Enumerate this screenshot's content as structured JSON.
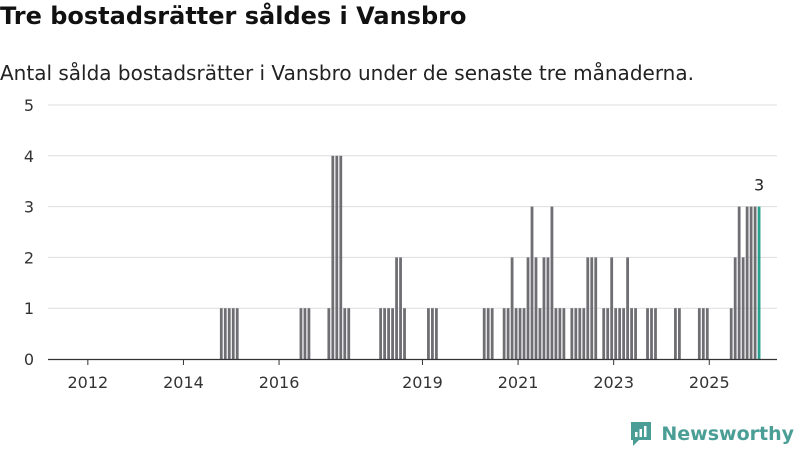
{
  "header": {
    "title": "Tre bostadsrätter såldes i Vansbro",
    "subtitle": "Antal sålda bostadsrätter i Vansbro under de senaste tre månaderna."
  },
  "brand": {
    "name": "Newsworthy",
    "color": "#4a9e96"
  },
  "colors": {
    "bar": "#6e6e73",
    "highlight": "#2aa08f",
    "grid": "#dddddd",
    "axis": "#333333"
  },
  "chart_data": {
    "type": "bar",
    "title": "Tre bostadsrätter såldes i Vansbro",
    "subtitle": "Antal sålda bostadsrätter i Vansbro under de senaste tre månaderna.",
    "xlabel": "",
    "ylabel": "",
    "ylim": [
      0,
      5
    ],
    "yticks": [
      0,
      1,
      2,
      3,
      4,
      5
    ],
    "xlim": [
      "2011-03",
      "2026-06"
    ],
    "xticks": [
      "2012",
      "2014",
      "2016",
      "2019",
      "2021",
      "2023",
      "2025"
    ],
    "grid": true,
    "annotations": [
      {
        "x": "2026-01",
        "text": "3"
      }
    ],
    "highlight": "2026-01",
    "x": [
      "2014-10",
      "2014-11",
      "2014-12",
      "2015-01",
      "2015-02",
      "2016-06",
      "2016-07",
      "2016-08",
      "2017-01",
      "2017-02",
      "2017-03",
      "2017-04",
      "2017-05",
      "2017-06",
      "2018-02",
      "2018-03",
      "2018-04",
      "2018-05",
      "2018-06",
      "2018-07",
      "2018-08",
      "2019-02",
      "2019-03",
      "2019-04",
      "2020-04",
      "2020-05",
      "2020-06",
      "2020-09",
      "2020-10",
      "2020-11",
      "2020-12",
      "2021-01",
      "2021-02",
      "2021-03",
      "2021-04",
      "2021-05",
      "2021-06",
      "2021-07",
      "2021-08",
      "2021-09",
      "2021-10",
      "2021-11",
      "2021-12",
      "2022-02",
      "2022-03",
      "2022-04",
      "2022-05",
      "2022-06",
      "2022-07",
      "2022-08",
      "2022-10",
      "2022-11",
      "2022-12",
      "2023-01",
      "2023-02",
      "2023-03",
      "2023-04",
      "2023-05",
      "2023-06",
      "2023-09",
      "2023-10",
      "2023-11",
      "2024-04",
      "2024-05",
      "2024-10",
      "2024-11",
      "2024-12",
      "2025-06",
      "2025-07",
      "2025-08",
      "2025-09",
      "2025-10",
      "2025-11",
      "2025-12",
      "2026-01"
    ],
    "values": [
      1,
      1,
      1,
      1,
      1,
      1,
      1,
      1,
      1,
      4,
      4,
      4,
      1,
      1,
      1,
      1,
      1,
      1,
      2,
      2,
      1,
      1,
      1,
      1,
      1,
      1,
      1,
      1,
      1,
      2,
      1,
      1,
      1,
      2,
      3,
      2,
      1,
      2,
      2,
      3,
      1,
      1,
      1,
      1,
      1,
      1,
      1,
      2,
      2,
      2,
      1,
      1,
      2,
      1,
      1,
      1,
      2,
      1,
      1,
      1,
      1,
      1,
      1,
      1,
      1,
      1,
      1,
      1,
      2,
      3,
      2,
      3,
      3,
      3,
      3
    ]
  }
}
